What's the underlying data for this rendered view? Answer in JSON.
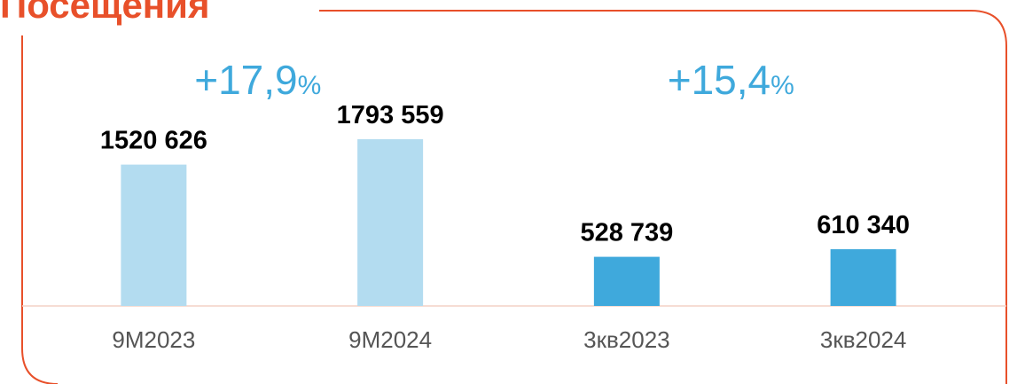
{
  "chart_data": {
    "type": "bar",
    "title": "Посещения",
    "categories": [
      "9M2023",
      "9M2024",
      "3кв2023",
      "3кв2024"
    ],
    "values": [
      1520626,
      1793559,
      528739,
      610340
    ],
    "value_labels": [
      "1520 626",
      "1793 559",
      "528 739",
      "610 340"
    ],
    "colors": [
      "#b3dcf0",
      "#b3dcf0",
      "#3fa9dc",
      "#3fa9dc"
    ],
    "annotations": [
      {
        "text": "+17,9",
        "unit": "%"
      },
      {
        "text": "+15,4",
        "unit": "%"
      }
    ]
  }
}
